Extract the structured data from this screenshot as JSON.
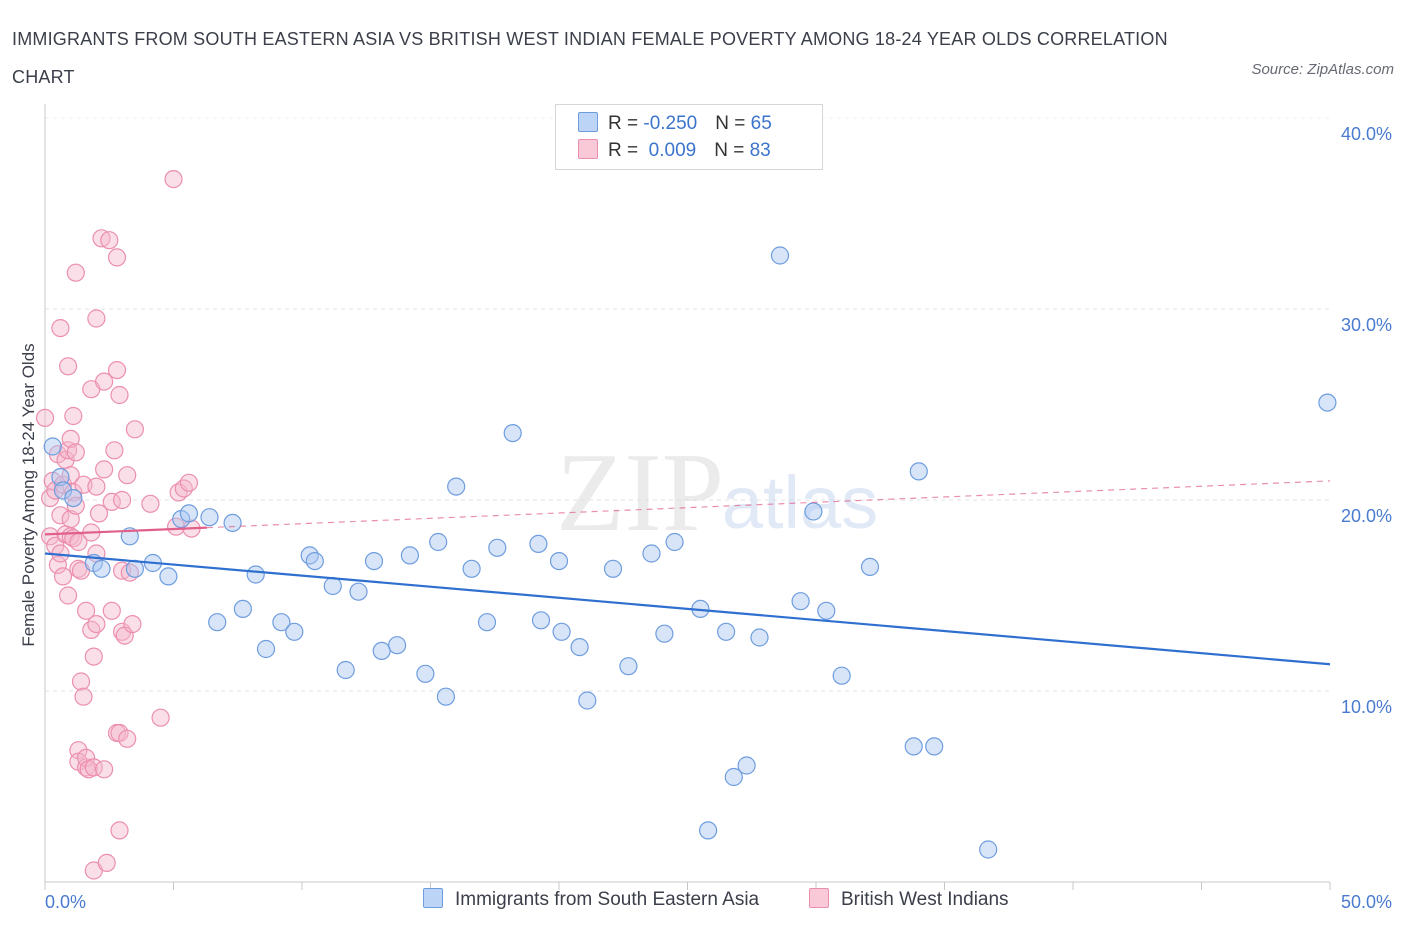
{
  "header": {
    "title": "IMMIGRANTS FROM SOUTH EASTERN ASIA VS BRITISH WEST INDIAN FEMALE POVERTY AMONG 18-24 YEAR OLDS CORRELATION CHART",
    "source": "Source: ZipAtlas.com"
  },
  "watermark": {
    "zip": "ZIP",
    "atlas": "atlas"
  },
  "legend": {
    "rows": [
      {
        "r_label": "R = ",
        "r_value": "-0.250",
        "n_label": "N = ",
        "n_value": "65"
      },
      {
        "r_label": "R = ",
        "r_value": " 0.009",
        "n_label": "N = ",
        "n_value": "83"
      }
    ]
  },
  "bottom_legend": {
    "items": [
      {
        "label": "Immigrants from South Eastern Asia"
      },
      {
        "label": "British West Indians"
      }
    ]
  },
  "chart_data": {
    "type": "scatter",
    "title": "IMMIGRANTS FROM SOUTH EASTERN ASIA VS BRITISH WEST INDIAN FEMALE POVERTY AMONG 18-24 YEAR OLDS CORRELATION CHART",
    "xlabel": "",
    "ylabel": "Female Poverty Among 18-24 Year Olds",
    "xlim": [
      0,
      50
    ],
    "ylim": [
      0,
      40
    ],
    "x_tick_labels": [
      "0.0%",
      "50.0%"
    ],
    "y_ticks": [
      10,
      20,
      30,
      40
    ],
    "y_tick_labels": [
      "10.0%",
      "20.0%",
      "30.0%",
      "40.0%"
    ],
    "grid": true,
    "legend_position": "top-center",
    "colors": {
      "blue_fill": "#a9c6f2",
      "blue_stroke": "#6e9ddf",
      "blue_line": "#2f6fcf",
      "pink_fill": "#f5b8cc",
      "pink_stroke": "#ec8fae",
      "pink_line": "#e0608a",
      "tick_text": "#4a7bd0"
    },
    "series": [
      {
        "name": "Immigrants from South Eastern Asia",
        "color": "#a9c6f2",
        "r": -0.25,
        "n": 65,
        "trend": {
          "x": [
            0,
            50
          ],
          "y": [
            17.2,
            11.4
          ]
        },
        "points": [
          [
            0.3,
            22.8
          ],
          [
            0.6,
            21.2
          ],
          [
            0.7,
            20.5
          ],
          [
            1.1,
            20.1
          ],
          [
            1.9,
            16.7
          ],
          [
            2.2,
            16.4
          ],
          [
            3.3,
            18.1
          ],
          [
            3.5,
            16.4
          ],
          [
            4.2,
            16.7
          ],
          [
            4.8,
            16.0
          ],
          [
            5.3,
            19.0
          ],
          [
            5.6,
            19.3
          ],
          [
            6.4,
            19.1
          ],
          [
            6.7,
            13.6
          ],
          [
            7.3,
            18.8
          ],
          [
            7.7,
            14.3
          ],
          [
            8.2,
            16.1
          ],
          [
            8.6,
            12.2
          ],
          [
            9.2,
            13.6
          ],
          [
            9.7,
            13.1
          ],
          [
            10.3,
            17.1
          ],
          [
            10.5,
            16.8
          ],
          [
            11.2,
            15.5
          ],
          [
            11.7,
            11.1
          ],
          [
            12.2,
            15.2
          ],
          [
            12.8,
            16.8
          ],
          [
            13.1,
            12.1
          ],
          [
            13.7,
            12.4
          ],
          [
            14.2,
            17.1
          ],
          [
            14.8,
            10.9
          ],
          [
            15.3,
            17.8
          ],
          [
            15.6,
            9.7
          ],
          [
            16.0,
            20.7
          ],
          [
            16.6,
            16.4
          ],
          [
            17.2,
            13.6
          ],
          [
            17.6,
            17.5
          ],
          [
            18.2,
            23.5
          ],
          [
            19.2,
            17.7
          ],
          [
            19.3,
            13.7
          ],
          [
            20.0,
            16.8
          ],
          [
            20.1,
            13.1
          ],
          [
            20.8,
            12.3
          ],
          [
            21.1,
            9.5
          ],
          [
            22.1,
            16.4
          ],
          [
            22.7,
            11.3
          ],
          [
            23.6,
            17.2
          ],
          [
            24.1,
            13.0
          ],
          [
            24.5,
            17.8
          ],
          [
            25.5,
            14.3
          ],
          [
            25.8,
            2.7
          ],
          [
            26.5,
            13.1
          ],
          [
            26.8,
            5.5
          ],
          [
            27.3,
            6.1
          ],
          [
            27.8,
            12.8
          ],
          [
            28.6,
            32.8
          ],
          [
            29.4,
            14.7
          ],
          [
            29.9,
            19.4
          ],
          [
            30.4,
            14.2
          ],
          [
            31.0,
            10.8
          ],
          [
            32.1,
            16.5
          ],
          [
            33.8,
            7.1
          ],
          [
            34.0,
            21.5
          ],
          [
            34.6,
            7.1
          ],
          [
            36.7,
            1.7
          ],
          [
            49.9,
            25.1
          ]
        ]
      },
      {
        "name": "British West Indians",
        "color": "#f5b8cc",
        "r": 0.009,
        "n": 83,
        "trend": {
          "x": [
            0,
            50
          ],
          "y": [
            18.2,
            21.0
          ]
        },
        "points": [
          [
            0.0,
            24.3
          ],
          [
            0.2,
            20.1
          ],
          [
            0.2,
            18.1
          ],
          [
            0.3,
            21.0
          ],
          [
            0.4,
            17.6
          ],
          [
            0.4,
            20.5
          ],
          [
            0.5,
            22.4
          ],
          [
            0.5,
            16.6
          ],
          [
            0.6,
            29.0
          ],
          [
            0.6,
            19.2
          ],
          [
            0.6,
            17.2
          ],
          [
            0.7,
            20.8
          ],
          [
            0.7,
            16.0
          ],
          [
            0.8,
            22.1
          ],
          [
            0.8,
            18.2
          ],
          [
            0.9,
            15.0
          ],
          [
            0.9,
            22.6
          ],
          [
            0.9,
            27.0
          ],
          [
            1.0,
            23.2
          ],
          [
            1.0,
            21.3
          ],
          [
            1.0,
            18.1
          ],
          [
            1.0,
            19.0
          ],
          [
            1.1,
            24.4
          ],
          [
            1.1,
            20.4
          ],
          [
            1.1,
            18.0
          ],
          [
            1.2,
            31.9
          ],
          [
            1.2,
            22.5
          ],
          [
            1.2,
            19.7
          ],
          [
            1.3,
            17.8
          ],
          [
            1.3,
            16.4
          ],
          [
            1.3,
            6.9
          ],
          [
            1.3,
            6.3
          ],
          [
            1.4,
            10.5
          ],
          [
            1.4,
            16.3
          ],
          [
            1.5,
            9.7
          ],
          [
            1.5,
            20.8
          ],
          [
            1.6,
            14.2
          ],
          [
            1.6,
            6.0
          ],
          [
            1.6,
            6.5
          ],
          [
            1.7,
            5.9
          ],
          [
            1.8,
            13.2
          ],
          [
            1.8,
            18.3
          ],
          [
            1.8,
            25.8
          ],
          [
            1.9,
            11.8
          ],
          [
            1.9,
            0.6
          ],
          [
            1.9,
            6.0
          ],
          [
            2.0,
            29.5
          ],
          [
            2.0,
            20.7
          ],
          [
            2.0,
            17.2
          ],
          [
            2.0,
            13.5
          ],
          [
            2.1,
            19.3
          ],
          [
            2.2,
            33.7
          ],
          [
            2.3,
            26.2
          ],
          [
            2.3,
            21.6
          ],
          [
            2.3,
            5.9
          ],
          [
            2.4,
            1.0
          ],
          [
            2.5,
            33.6
          ],
          [
            2.6,
            19.9
          ],
          [
            2.6,
            14.2
          ],
          [
            2.7,
            22.6
          ],
          [
            2.8,
            7.8
          ],
          [
            2.8,
            32.7
          ],
          [
            2.8,
            26.8
          ],
          [
            2.9,
            25.5
          ],
          [
            2.9,
            7.8
          ],
          [
            2.9,
            2.7
          ],
          [
            3.0,
            16.3
          ],
          [
            3.0,
            20.0
          ],
          [
            3.0,
            13.1
          ],
          [
            3.1,
            12.9
          ],
          [
            3.2,
            7.5
          ],
          [
            3.2,
            21.3
          ],
          [
            3.3,
            16.2
          ],
          [
            3.4,
            13.5
          ],
          [
            3.5,
            23.7
          ],
          [
            4.1,
            19.8
          ],
          [
            4.5,
            8.6
          ],
          [
            5.0,
            36.8
          ],
          [
            5.1,
            18.6
          ],
          [
            5.2,
            20.4
          ],
          [
            5.4,
            20.6
          ],
          [
            5.6,
            20.9
          ],
          [
            5.7,
            18.5
          ]
        ]
      }
    ]
  }
}
